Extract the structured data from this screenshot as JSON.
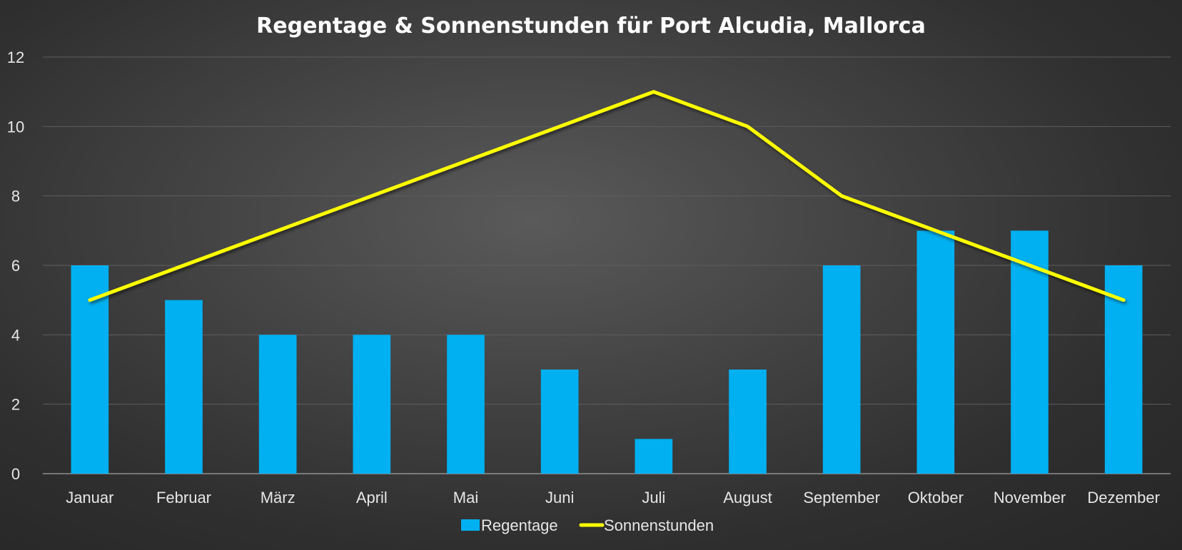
{
  "chart_data": {
    "type": "bar",
    "title": "Regentage & Sonnenstunden für Port Alcudia, Mallorca",
    "xlabel": "",
    "ylabel": "",
    "categories": [
      "Januar",
      "Februar",
      "März",
      "April",
      "Mai",
      "Juni",
      "Juli",
      "August",
      "September",
      "Oktober",
      "November",
      "Dezember"
    ],
    "ylim": [
      0,
      12
    ],
    "yticks": [
      0,
      2,
      4,
      6,
      8,
      10,
      12
    ],
    "grid": true,
    "legend_position": "bottom",
    "series": [
      {
        "name": "Regentage",
        "type": "bar",
        "color": "#00b0f0",
        "values": [
          6,
          5,
          4,
          4,
          4,
          3,
          1,
          3,
          6,
          7,
          7,
          6
        ]
      },
      {
        "name": "Sonnenstunden",
        "type": "line",
        "color": "#ffff00",
        "values": [
          5,
          6,
          7,
          8,
          9,
          10,
          11,
          10,
          8,
          7,
          6,
          5
        ]
      }
    ]
  }
}
